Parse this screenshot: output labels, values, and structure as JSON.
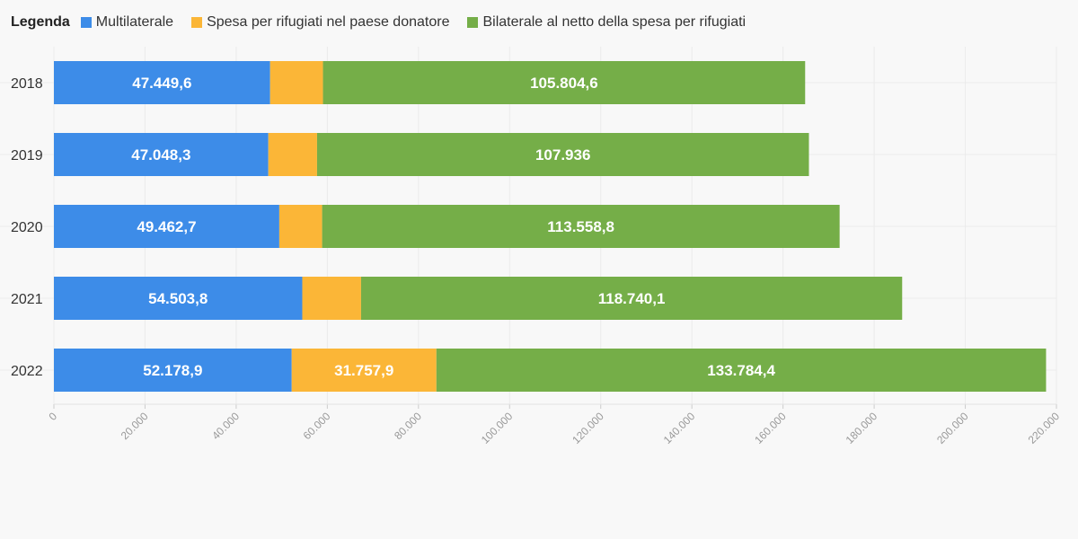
{
  "chart_data": {
    "type": "bar",
    "orientation": "horizontal",
    "stacked": true,
    "legend_title": "Legenda",
    "categories": [
      "2018",
      "2019",
      "2020",
      "2021",
      "2022"
    ],
    "series": [
      {
        "name": "Multilaterale",
        "color": "#3d8ce8",
        "values": [
          47449.6,
          47048.3,
          49462.7,
          54503.8,
          52178.9
        ],
        "labels": [
          "47.449,6",
          "47.048,3",
          "49.462,7",
          "54.503,8",
          "52.178,9"
        ]
      },
      {
        "name": "Spesa per rifugiati nel paese donatore",
        "color": "#fbb637",
        "values": [
          11600,
          10700,
          9400,
          12900,
          31757.9
        ],
        "labels": [
          "",
          "",
          "",
          "",
          "31.757,9"
        ]
      },
      {
        "name": "Bilaterale al netto della spesa per rifugiati",
        "color": "#75ae48",
        "values": [
          105804.6,
          107936,
          113558.8,
          118740.1,
          133784.4
        ],
        "labels": [
          "105.804,6",
          "107.936",
          "113.558,8",
          "118.740,1",
          "133.784,4"
        ]
      }
    ],
    "xlim": [
      0,
      220000
    ],
    "ticks": [
      "0",
      "20.000",
      "40.000",
      "60.000",
      "80.000",
      "100.000",
      "120.000",
      "140.000",
      "160.000",
      "180.000",
      "200.000",
      "220.000"
    ],
    "grid": true,
    "legend_position": "top-left"
  }
}
